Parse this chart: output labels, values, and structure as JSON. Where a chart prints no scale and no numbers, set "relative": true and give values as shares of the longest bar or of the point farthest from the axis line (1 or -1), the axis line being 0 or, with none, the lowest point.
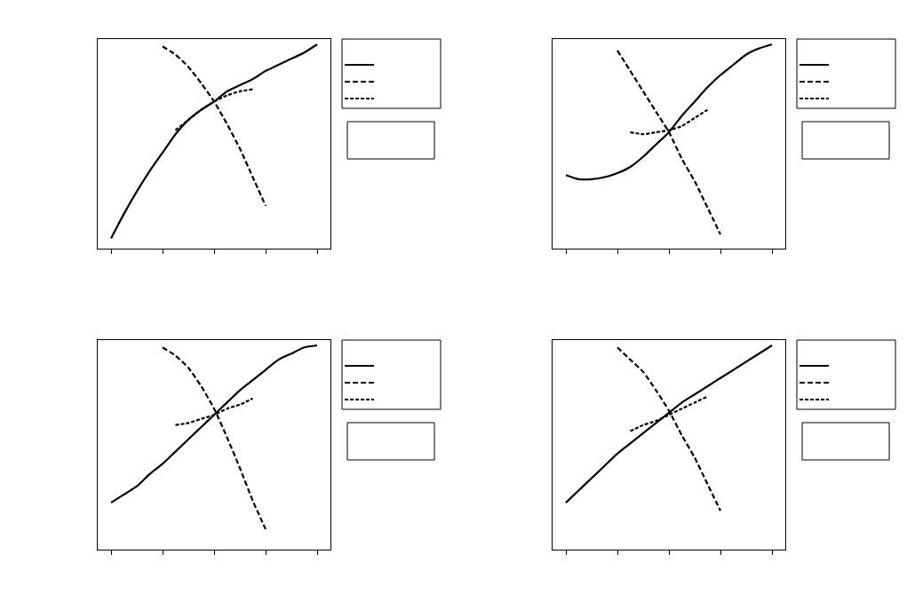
{
  "chart_data": [
    {
      "type": "line",
      "relative": true,
      "marker": "none",
      "categories": [
        null,
        null,
        null,
        null,
        null,
        null,
        null,
        null,
        null,
        null,
        null,
        null,
        null,
        null,
        null,
        null,
        null
      ],
      "series": [
        {
          "color": "#000000",
          "line_style": "solid",
          "values": [
            0.05,
            0.17,
            0.28,
            0.38,
            0.47,
            0.56,
            0.63,
            0.68,
            0.72,
            0.77,
            0.8,
            0.83,
            0.87,
            0.9,
            0.93,
            0.96,
            1
          ]
        },
        {
          "color": "#000000",
          "line_style": "dashed",
          "values": [
            null,
            null,
            null,
            null,
            0.99,
            0.95,
            0.89,
            0.81,
            0.72,
            0.61,
            0.49,
            0.35,
            0.21,
            null,
            null,
            null,
            null
          ]
        },
        {
          "color": "#000000",
          "line_style": "dotted",
          "values": [
            null,
            null,
            null,
            null,
            null,
            0.58,
            0.63,
            0.68,
            0.72,
            0.75,
            0.77,
            0.78,
            null,
            null,
            null,
            null,
            null
          ]
        }
      ]
    },
    {
      "type": "line",
      "relative": true,
      "marker": "none",
      "categories": [
        null,
        null,
        null,
        null,
        null,
        null,
        null,
        null,
        null,
        null,
        null,
        null,
        null,
        null,
        null,
        null,
        null
      ],
      "series": [
        {
          "color": "#000000",
          "line_style": "solid",
          "values": [
            0.36,
            0.34,
            0.34,
            0.35,
            0.37,
            0.4,
            0.45,
            0.51,
            0.57,
            0.65,
            0.72,
            0.79,
            0.85,
            0.9,
            0.95,
            0.98,
            1
          ]
        },
        {
          "color": "#000000",
          "line_style": "dashed",
          "values": [
            null,
            null,
            null,
            null,
            0.97,
            0.87,
            0.77,
            0.67,
            0.57,
            0.44,
            0.33,
            0.2,
            0.07,
            null,
            null,
            null,
            null
          ]
        },
        {
          "color": "#000000",
          "line_style": "dotted",
          "values": [
            null,
            null,
            null,
            null,
            null,
            0.57,
            0.56,
            0.57,
            0.58,
            0.6,
            0.64,
            0.68,
            null,
            null,
            null,
            null,
            null
          ]
        }
      ]
    },
    {
      "type": "line",
      "relative": true,
      "marker": "none",
      "categories": [
        null,
        null,
        null,
        null,
        null,
        null,
        null,
        null,
        null,
        null,
        null,
        null,
        null,
        null,
        null,
        null,
        null
      ],
      "series": [
        {
          "color": "#000000",
          "line_style": "solid",
          "values": [
            0.23,
            0.27,
            0.31,
            0.37,
            0.42,
            0.48,
            0.54,
            0.6,
            0.66,
            0.72,
            0.78,
            0.83,
            0.88,
            0.93,
            0.96,
            0.99,
            1
          ]
        },
        {
          "color": "#000000",
          "line_style": "dashed",
          "values": [
            null,
            null,
            null,
            null,
            0.99,
            0.95,
            0.89,
            0.8,
            0.69,
            0.55,
            0.4,
            0.24,
            0.1,
            null,
            null,
            null,
            null
          ]
        },
        {
          "color": "#000000",
          "line_style": "dotted",
          "values": [
            null,
            null,
            null,
            null,
            null,
            0.61,
            0.62,
            0.64,
            0.66,
            0.69,
            0.71,
            0.74,
            null,
            null,
            null,
            null,
            null
          ]
        }
      ]
    },
    {
      "type": "line",
      "relative": true,
      "marker": "none",
      "categories": [
        null,
        null,
        null,
        null,
        null,
        null,
        null,
        null,
        null,
        null,
        null,
        null,
        null,
        null,
        null,
        null,
        null
      ],
      "series": [
        {
          "color": "#000000",
          "line_style": "solid",
          "values": [
            0.23,
            0.29,
            0.35,
            0.41,
            0.47,
            0.52,
            0.57,
            0.62,
            0.67,
            0.72,
            0.76,
            0.8,
            0.84,
            0.88,
            0.92,
            0.96,
            1
          ]
        },
        {
          "color": "#000000",
          "line_style": "dashed",
          "values": [
            null,
            null,
            null,
            null,
            0.99,
            0.93,
            0.87,
            0.78,
            0.68,
            0.56,
            0.45,
            0.32,
            0.19,
            null,
            null,
            null,
            null
          ]
        },
        {
          "color": "#000000",
          "line_style": "dotted",
          "values": [
            null,
            null,
            null,
            null,
            null,
            0.58,
            0.61,
            0.63,
            0.66,
            0.69,
            0.72,
            0.75,
            null,
            null,
            null,
            null,
            null
          ]
        }
      ]
    }
  ]
}
